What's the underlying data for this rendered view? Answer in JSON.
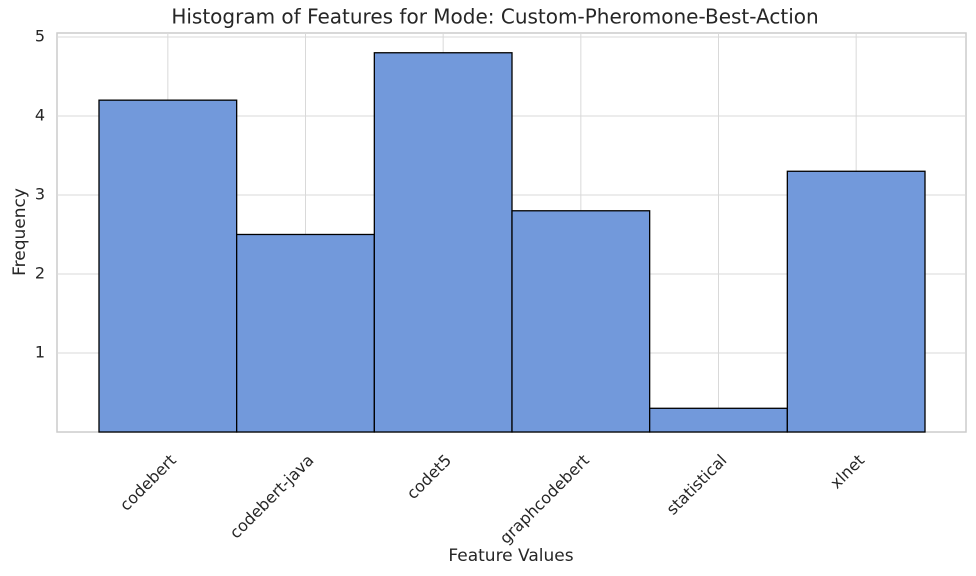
{
  "chart_data": {
    "type": "bar",
    "title": "Histogram of Features for Mode: Custom-Pheromone-Best-Action",
    "x_label": "Feature Values",
    "y_label": "Frequency",
    "categories": [
      "codebert",
      "codebert-java",
      "codet5",
      "graphcodebert",
      "statistical",
      "xlnet"
    ],
    "values": [
      4.2,
      2.5,
      4.8,
      2.8,
      0.3,
      3.3
    ],
    "color": "#7299db",
    "edgecolor": "#000000",
    "ylim": [
      0,
      5.05
    ],
    "yticks": [
      1,
      2,
      3,
      4,
      5
    ],
    "grid": true
  }
}
